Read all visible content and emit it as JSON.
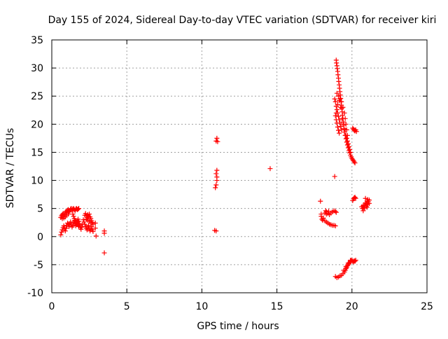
{
  "chart_data": {
    "type": "scatter",
    "title": "Day 155 of 2024, Sidereal Day-to-day VTEC variation (SDTVAR) for receiver kiri",
    "xlabel": "GPS time / hours",
    "ylabel": "SDTVAR / TECUs",
    "xlim": [
      0,
      25
    ],
    "ylim": [
      -10,
      35
    ],
    "xticks": [
      "0",
      "5",
      "10",
      "15",
      "20",
      "25"
    ],
    "yticks": [
      "-10",
      "-5",
      "0",
      "5",
      "10",
      "15",
      "20",
      "25",
      "30",
      "35"
    ],
    "grid": true,
    "marker": "+",
    "marker_color": "#ff0000",
    "series": [
      {
        "points": [
          [
            0.6,
            0.3
          ],
          [
            0.65,
            0.8
          ],
          [
            0.7,
            1.2
          ],
          [
            0.75,
            1.6
          ],
          [
            0.8,
            1.9
          ],
          [
            0.85,
            1.4
          ],
          [
            0.9,
            1.0
          ],
          [
            0.95,
            1.5
          ],
          [
            1.0,
            2.0
          ],
          [
            1.05,
            2.4
          ],
          [
            1.1,
            2.2
          ],
          [
            1.15,
            1.8
          ],
          [
            1.2,
            2.3
          ],
          [
            1.25,
            2.6
          ],
          [
            1.3,
            2.1
          ],
          [
            1.35,
            1.7
          ],
          [
            1.4,
            2.0
          ],
          [
            1.45,
            2.5
          ],
          [
            1.5,
            2.8
          ],
          [
            1.55,
            2.3
          ],
          [
            1.6,
            1.9
          ],
          [
            1.65,
            2.2
          ],
          [
            1.7,
            2.6
          ],
          [
            1.75,
            2.1
          ],
          [
            1.8,
            1.8
          ],
          [
            1.85,
            2.0
          ],
          [
            1.9,
            1.6
          ],
          [
            1.95,
            1.3
          ],
          [
            2.0,
            1.7
          ],
          [
            2.05,
            2.2
          ],
          [
            0.6,
            3.4
          ],
          [
            0.65,
            3.7
          ],
          [
            0.7,
            3.9
          ],
          [
            0.75,
            4.1
          ],
          [
            0.8,
            3.6
          ],
          [
            0.85,
            3.9
          ],
          [
            0.9,
            4.3
          ],
          [
            0.95,
            4.5
          ],
          [
            1.0,
            4.2
          ],
          [
            1.05,
            4.7
          ],
          [
            1.1,
            4.8
          ],
          [
            1.15,
            4.4
          ],
          [
            1.2,
            4.6
          ],
          [
            1.25,
            4.9
          ],
          [
            1.3,
            5.0
          ],
          [
            1.35,
            4.7
          ],
          [
            1.4,
            4.9
          ],
          [
            1.45,
            5.0
          ],
          [
            1.5,
            4.8
          ],
          [
            1.55,
            4.6
          ],
          [
            1.6,
            4.9
          ],
          [
            1.65,
            5.0
          ],
          [
            1.7,
            4.8
          ],
          [
            1.75,
            4.9
          ],
          [
            1.8,
            5.0
          ],
          [
            0.7,
            3.2
          ],
          [
            0.8,
            3.3
          ],
          [
            0.9,
            3.5
          ],
          [
            1.0,
            3.8
          ],
          [
            1.1,
            4.0
          ],
          [
            1.4,
            4.0
          ],
          [
            1.45,
            3.6
          ],
          [
            1.5,
            3.2
          ],
          [
            1.55,
            2.9
          ],
          [
            1.6,
            2.6
          ],
          [
            1.65,
            2.4
          ],
          [
            1.7,
            2.8
          ],
          [
            1.75,
            3.1
          ],
          [
            1.8,
            2.7
          ],
          [
            1.85,
            2.3
          ],
          [
            2.1,
            3.0
          ],
          [
            2.15,
            2.6
          ],
          [
            2.2,
            2.2
          ],
          [
            2.25,
            1.8
          ],
          [
            2.3,
            1.5
          ],
          [
            2.35,
            1.2
          ],
          [
            2.4,
            1.6
          ],
          [
            2.45,
            2.0
          ],
          [
            2.5,
            1.4
          ],
          [
            2.55,
            1.0
          ],
          [
            2.6,
            1.3
          ],
          [
            2.65,
            1.8
          ],
          [
            2.7,
            1.2
          ],
          [
            2.75,
            0.9
          ],
          [
            2.2,
            3.8
          ],
          [
            2.25,
            4.1
          ],
          [
            2.3,
            3.7
          ],
          [
            2.35,
            3.4
          ],
          [
            2.4,
            3.9
          ],
          [
            2.45,
            3.6
          ],
          [
            2.5,
            4.0
          ],
          [
            2.55,
            3.5
          ],
          [
            2.6,
            3.2
          ],
          [
            2.65,
            2.8
          ],
          [
            2.7,
            2.5
          ],
          [
            2.75,
            2.2
          ],
          [
            2.3,
            3.1
          ],
          [
            2.4,
            2.9
          ],
          [
            2.5,
            2.7
          ],
          [
            2.6,
            2.4
          ],
          [
            2.9,
            2.4
          ],
          [
            2.9,
            1.5
          ],
          [
            2.95,
            0.1
          ],
          [
            3.5,
            1.0
          ],
          [
            3.5,
            0.6
          ],
          [
            3.5,
            -2.9
          ]
        ]
      },
      {
        "points": [
          [
            10.85,
            1.1
          ],
          [
            10.95,
            1.0
          ],
          [
            10.9,
            8.7
          ],
          [
            10.95,
            9.2
          ],
          [
            11.0,
            10.0
          ],
          [
            11.0,
            10.6
          ],
          [
            10.95,
            11.2
          ],
          [
            11.0,
            11.8
          ],
          [
            10.95,
            17.0
          ],
          [
            11.0,
            17.5
          ],
          [
            11.05,
            16.9
          ],
          [
            14.55,
            12.1
          ]
        ]
      },
      {
        "points": [
          [
            17.9,
            6.3
          ],
          [
            17.95,
            4.0
          ],
          [
            17.95,
            3.6
          ],
          [
            18.0,
            3.1
          ],
          [
            18.05,
            2.9
          ],
          [
            18.1,
            3.3
          ],
          [
            18.2,
            2.8
          ],
          [
            18.3,
            2.6
          ],
          [
            18.4,
            2.4
          ],
          [
            18.5,
            2.2
          ],
          [
            18.6,
            2.1
          ],
          [
            18.7,
            2.0
          ],
          [
            18.8,
            2.0
          ],
          [
            18.9,
            1.9
          ],
          [
            18.2,
            4.2
          ],
          [
            18.25,
            4.6
          ],
          [
            18.3,
            4.4
          ],
          [
            18.4,
            4.1
          ],
          [
            18.5,
            3.9
          ],
          [
            18.6,
            4.2
          ],
          [
            18.7,
            4.4
          ],
          [
            18.8,
            4.6
          ],
          [
            18.9,
            4.5
          ],
          [
            18.95,
            4.3
          ],
          [
            18.3,
            4.0
          ],
          [
            18.45,
            4.5
          ],
          [
            18.85,
            10.7
          ]
        ]
      },
      {
        "points": [
          [
            18.95,
            31.4
          ],
          [
            18.97,
            30.9
          ],
          [
            19.0,
            30.4
          ],
          [
            19.02,
            29.9
          ],
          [
            19.05,
            29.4
          ],
          [
            19.07,
            28.8
          ],
          [
            19.1,
            28.2
          ],
          [
            19.12,
            27.6
          ],
          [
            19.15,
            27.0
          ],
          [
            19.17,
            26.4
          ],
          [
            19.2,
            25.8
          ],
          [
            19.22,
            25.2
          ],
          [
            19.25,
            24.6
          ],
          [
            19.27,
            24.0
          ],
          [
            19.3,
            23.4
          ],
          [
            19.32,
            22.8
          ],
          [
            19.35,
            22.2
          ],
          [
            19.37,
            21.6
          ],
          [
            19.4,
            21.0
          ],
          [
            19.42,
            20.4
          ],
          [
            19.45,
            19.8
          ],
          [
            19.47,
            19.2
          ],
          [
            19.5,
            18.6
          ],
          [
            19.55,
            18.0
          ],
          [
            19.6,
            17.4
          ],
          [
            19.65,
            16.8
          ],
          [
            19.7,
            16.3
          ],
          [
            19.75,
            15.8
          ],
          [
            19.8,
            15.3
          ],
          [
            19.85,
            14.9
          ],
          [
            19.9,
            14.5
          ],
          [
            19.95,
            14.2
          ],
          [
            20.0,
            13.9
          ],
          [
            20.05,
            13.7
          ],
          [
            20.1,
            13.5
          ],
          [
            20.15,
            13.3
          ],
          [
            20.2,
            13.1
          ],
          [
            18.85,
            24.5
          ],
          [
            18.9,
            24.0
          ],
          [
            18.95,
            23.2
          ],
          [
            19.0,
            22.6
          ],
          [
            19.05,
            22.0
          ],
          [
            19.1,
            21.4
          ],
          [
            19.15,
            20.8
          ],
          [
            19.2,
            20.2
          ],
          [
            19.25,
            19.6
          ],
          [
            19.3,
            19.0
          ],
          [
            18.9,
            21.5
          ],
          [
            18.95,
            20.8
          ],
          [
            19.0,
            20.2
          ],
          [
            19.05,
            19.5
          ],
          [
            19.1,
            18.9
          ],
          [
            19.15,
            18.4
          ],
          [
            18.95,
            22.0
          ],
          [
            19.05,
            23.5
          ],
          [
            19.15,
            24.2
          ],
          [
            19.25,
            23.0
          ],
          [
            19.35,
            21.0
          ],
          [
            19.45,
            20.0
          ],
          [
            19.55,
            19.0
          ],
          [
            19.6,
            18.0
          ],
          [
            19.65,
            17.5
          ],
          [
            19.7,
            17.0
          ],
          [
            19.75,
            16.5
          ],
          [
            19.8,
            16.0
          ],
          [
            19.85,
            15.5
          ],
          [
            19.9,
            15.0
          ],
          [
            19.0,
            25.5
          ],
          [
            19.1,
            25.0
          ],
          [
            19.2,
            24.5
          ],
          [
            19.3,
            24.0
          ],
          [
            19.4,
            23.0
          ],
          [
            19.5,
            22.0
          ],
          [
            19.55,
            21.0
          ],
          [
            19.6,
            20.0
          ],
          [
            19.65,
            19.0
          ],
          [
            19.7,
            18.0
          ]
        ]
      },
      {
        "points": [
          [
            20.05,
            19.3
          ],
          [
            20.1,
            19.1
          ],
          [
            20.15,
            18.9
          ],
          [
            20.2,
            18.8
          ],
          [
            20.25,
            19.0
          ],
          [
            20.3,
            18.7
          ],
          [
            20.05,
            6.4
          ],
          [
            20.1,
            6.7
          ],
          [
            20.15,
            6.9
          ],
          [
            20.2,
            7.0
          ],
          [
            20.25,
            6.8
          ],
          [
            20.7,
            5.0
          ],
          [
            20.75,
            4.6
          ],
          [
            20.8,
            5.2
          ],
          [
            20.85,
            5.6
          ],
          [
            20.9,
            6.0
          ],
          [
            20.95,
            5.8
          ],
          [
            21.0,
            6.3
          ],
          [
            21.05,
            6.6
          ],
          [
            21.1,
            6.2
          ],
          [
            21.15,
            5.9
          ],
          [
            20.75,
            5.5
          ],
          [
            20.85,
            5.1
          ],
          [
            20.95,
            5.4
          ],
          [
            21.05,
            5.7
          ],
          [
            21.15,
            6.5
          ],
          [
            20.65,
            5.3
          ],
          [
            20.9,
            6.8
          ],
          [
            21.0,
            5.2
          ]
        ]
      },
      {
        "points": [
          [
            18.9,
            -7.1
          ],
          [
            19.0,
            -7.3
          ],
          [
            19.1,
            -7.2
          ],
          [
            19.2,
            -7.0
          ],
          [
            19.3,
            -6.9
          ],
          [
            19.4,
            -6.6
          ],
          [
            19.5,
            -6.3
          ],
          [
            19.55,
            -6.0
          ],
          [
            19.6,
            -5.7
          ],
          [
            19.65,
            -5.5
          ],
          [
            19.7,
            -5.2
          ],
          [
            19.75,
            -5.0
          ],
          [
            19.8,
            -4.8
          ],
          [
            19.85,
            -4.6
          ],
          [
            19.9,
            -4.5
          ],
          [
            19.95,
            -4.3
          ],
          [
            20.0,
            -4.2
          ],
          [
            20.05,
            -4.4
          ],
          [
            20.1,
            -4.5
          ],
          [
            20.15,
            -4.3
          ],
          [
            20.2,
            -4.4
          ],
          [
            20.25,
            -4.2
          ],
          [
            19.45,
            -6.0
          ],
          [
            19.6,
            -5.3
          ],
          [
            19.75,
            -4.7
          ],
          [
            19.9,
            -4.2
          ]
        ]
      }
    ]
  }
}
